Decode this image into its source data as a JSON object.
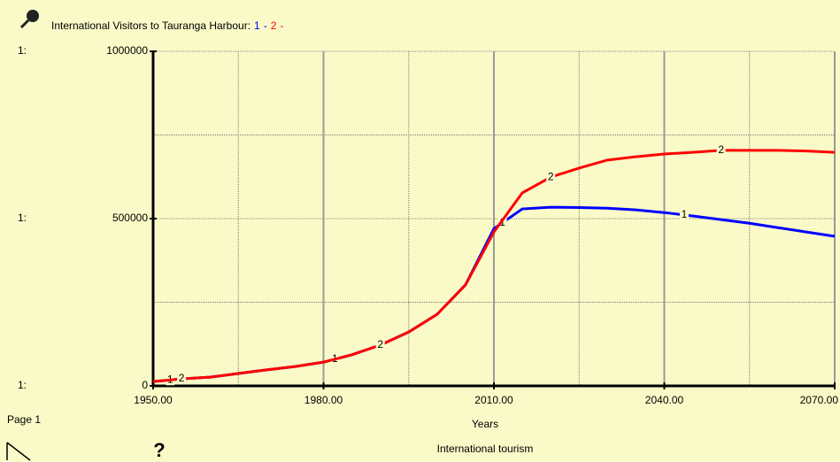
{
  "chart_data": {
    "type": "line",
    "title": "International Visitors to Tauranga Harbour:",
    "axis_prefix": "1:",
    "x_label": "Years",
    "page_label": "Page 1",
    "footer": "International tourism",
    "help_icon": "?",
    "x": [
      1950,
      1955,
      1960,
      1965,
      1970,
      1975,
      1980,
      1985,
      1990,
      1995,
      2000,
      2005,
      2010,
      2015,
      2020,
      2025,
      2030,
      2035,
      2040,
      2045,
      2050,
      2055,
      2060,
      2065,
      2070
    ],
    "series": [
      {
        "name": "1",
        "color": "#0000ff",
        "values": [
          13000,
          21000,
          26000,
          37000,
          48000,
          58000,
          71000,
          93000,
          122000,
          161000,
          214000,
          302000,
          470000,
          529000,
          534000,
          533000,
          531000,
          526000,
          518000,
          508000,
          497000,
          486000,
          473000,
          460000,
          447000
        ]
      },
      {
        "name": "2",
        "color": "#ff0000",
        "values": [
          13000,
          21000,
          26000,
          37000,
          48000,
          58000,
          71000,
          93000,
          122000,
          161000,
          214000,
          302000,
          460000,
          577000,
          624000,
          651000,
          675000,
          685000,
          693000,
          698000,
          704000,
          704000,
          704000,
          702000,
          698000
        ]
      }
    ],
    "xlim": [
      1950,
      2070
    ],
    "xticks": [
      {
        "value": 1950,
        "label": "1950.00"
      },
      {
        "value": 1980,
        "label": "1980.00"
      },
      {
        "value": 2010,
        "label": "2010.00"
      },
      {
        "value": 2040,
        "label": "2040.00"
      },
      {
        "value": 2070,
        "label": "2070.00"
      }
    ],
    "minor_xticks": [
      1965,
      1995,
      2025,
      2055
    ],
    "ylim": [
      0,
      1000000
    ],
    "yticks": [
      0,
      500000,
      1000000
    ],
    "minor_yticks": [
      250000,
      750000
    ],
    "grid": true
  }
}
